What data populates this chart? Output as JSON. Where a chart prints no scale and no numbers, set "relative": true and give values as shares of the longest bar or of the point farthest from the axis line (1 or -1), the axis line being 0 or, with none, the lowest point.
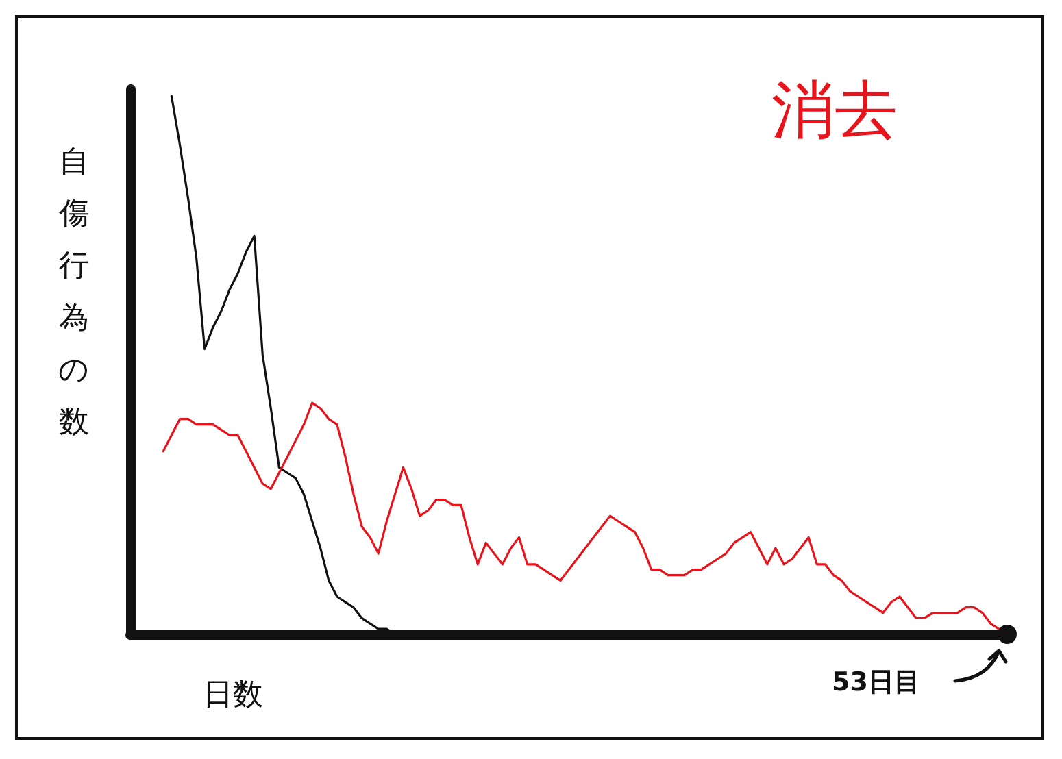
{
  "chart_data": {
    "type": "line",
    "title": "消去",
    "ylabel": "自傷行為の数",
    "xlabel": "日数",
    "relative": true,
    "grid": false,
    "marker": "none",
    "line_style": "solid",
    "annotations": [
      "53日目"
    ],
    "categories": [
      null,
      null,
      null,
      null,
      null,
      null,
      null,
      null,
      null,
      null,
      null,
      null,
      null,
      null,
      null,
      null,
      null,
      null,
      null,
      null,
      null,
      null,
      null,
      null,
      null,
      null,
      null,
      null,
      null,
      null,
      null,
      null,
      null,
      null,
      null,
      null,
      null,
      null,
      null,
      null,
      null,
      null,
      null,
      null,
      null,
      null,
      null,
      null,
      null,
      null,
      null,
      null,
      null,
      null,
      null,
      null,
      null,
      null,
      null,
      null,
      null,
      null,
      null,
      null,
      null,
      null,
      null,
      null,
      null,
      null,
      null,
      null,
      null,
      null,
      null,
      null,
      null,
      null,
      null,
      null,
      null,
      null,
      null,
      null,
      null,
      null,
      null,
      null,
      null,
      null,
      null,
      null,
      null,
      null,
      null,
      null,
      null,
      null,
      null,
      null,
      null,
      null,
      null,
      null,
      null,
      null,
      null
    ],
    "series": [
      {
        "color": "#111111",
        "values": [
          null,
          null,
          null,
          null,
          null,
          1,
          0.91,
          0.81,
          0.7,
          0.53,
          0.57,
          0.6,
          0.64,
          0.67,
          0.71,
          0.74,
          0.52,
          0.42,
          0.31,
          0.3,
          0.29,
          0.26,
          0.21,
          0.16,
          0.1,
          0.07,
          0.06,
          0.05,
          0.03,
          0.02,
          0.01,
          0.01,
          0,
          null,
          null,
          null,
          null,
          null,
          null,
          null,
          null,
          null,
          null,
          null,
          null,
          null,
          null,
          null,
          null,
          null,
          null,
          null,
          null,
          null,
          null,
          null,
          null,
          null,
          null,
          null,
          null,
          null,
          null,
          null,
          null,
          null,
          null,
          null,
          null,
          null,
          null,
          null,
          null,
          null,
          null,
          null,
          null,
          null,
          null,
          null,
          null,
          null,
          null,
          null,
          null,
          null,
          null,
          null,
          null,
          null,
          null,
          null,
          null,
          null,
          null,
          null,
          null,
          null,
          null,
          null,
          null,
          null,
          null,
          null,
          null,
          null,
          null
        ]
      },
      {
        "color": "#e8141c",
        "values": [
          null,
          null,
          null,
          null,
          0.34,
          0.37,
          0.4,
          0.4,
          0.39,
          0.39,
          0.39,
          0.38,
          0.37,
          0.37,
          0.34,
          0.31,
          0.28,
          0.27,
          0.3,
          0.33,
          0.36,
          0.39,
          0.43,
          0.42,
          0.4,
          0.39,
          0.33,
          0.26,
          0.2,
          0.18,
          0.15,
          0.21,
          0.26,
          0.31,
          0.27,
          0.22,
          0.23,
          0.25,
          0.25,
          0.24,
          0.24,
          0.18,
          0.13,
          0.17,
          0.15,
          0.13,
          0.16,
          0.18,
          0.13,
          0.13,
          0.12,
          0.11,
          0.1,
          0.12,
          0.14,
          0.16,
          0.18,
          0.2,
          0.22,
          0.21,
          0.2,
          0.19,
          0.16,
          0.12,
          0.12,
          0.11,
          0.11,
          0.11,
          0.12,
          0.12,
          0.13,
          0.14,
          0.15,
          0.17,
          0.18,
          0.19,
          0.16,
          0.13,
          0.16,
          0.13,
          0.14,
          0.16,
          0.18,
          0.13,
          0.13,
          0.11,
          0.1,
          0.08,
          0.07,
          0.06,
          0.05,
          0.04,
          0.06,
          0.07,
          0.05,
          0.03,
          0.03,
          0.04,
          0.04,
          0.04,
          0.04,
          0.05,
          0.05,
          0.04,
          0.02,
          0.01,
          null
        ]
      }
    ]
  }
}
